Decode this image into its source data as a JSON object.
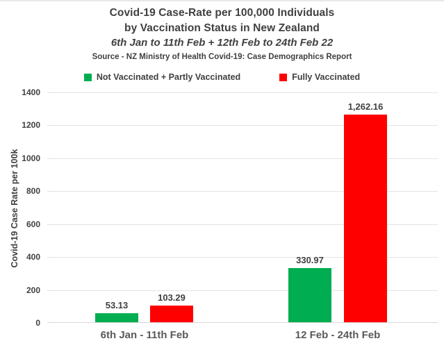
{
  "header": {
    "title_line1": "Covid-19 Case-Rate per 100,000 Individuals",
    "title_line2": "by Vaccination Status in New Zealand",
    "subtitle": "6th Jan to 11th Feb + 12th Feb to 24th Feb 22",
    "source": "Source - NZ Ministry of Health Covid-19: Case Demographics Report"
  },
  "chart_data": {
    "type": "bar",
    "title": "Covid-19 Case-Rate per 100,000 Individuals by Vaccination Status in New Zealand",
    "subtitle": "6th Jan to 11th Feb + 12th Feb to 24th Feb 22",
    "source": "Source - NZ Ministry of Health Covid-19: Case Demographics Report",
    "categories": [
      "6th Jan - 11th Feb",
      "12 Feb - 24th Feb"
    ],
    "series": [
      {
        "name": "Not Vaccinated + Partly Vaccinated",
        "color": "#00AD50",
        "values": [
          53.13,
          330.97
        ],
        "labels": [
          "53.13",
          "330.97"
        ]
      },
      {
        "name": "Fully Vaccinated",
        "color": "#FF0000",
        "values": [
          103.29,
          1262.16
        ],
        "labels": [
          "103.29",
          "1,262.16"
        ]
      }
    ],
    "xlabel": "",
    "ylabel": "Covid-19 Case Rate per 100k",
    "ylim": [
      0,
      1400
    ],
    "yticks": [
      0,
      200,
      400,
      600,
      800,
      1000,
      1200,
      1400
    ],
    "grid": true,
    "legend_position": "top",
    "text_color": "#404040",
    "gridline_color": "#e4e4e4"
  }
}
